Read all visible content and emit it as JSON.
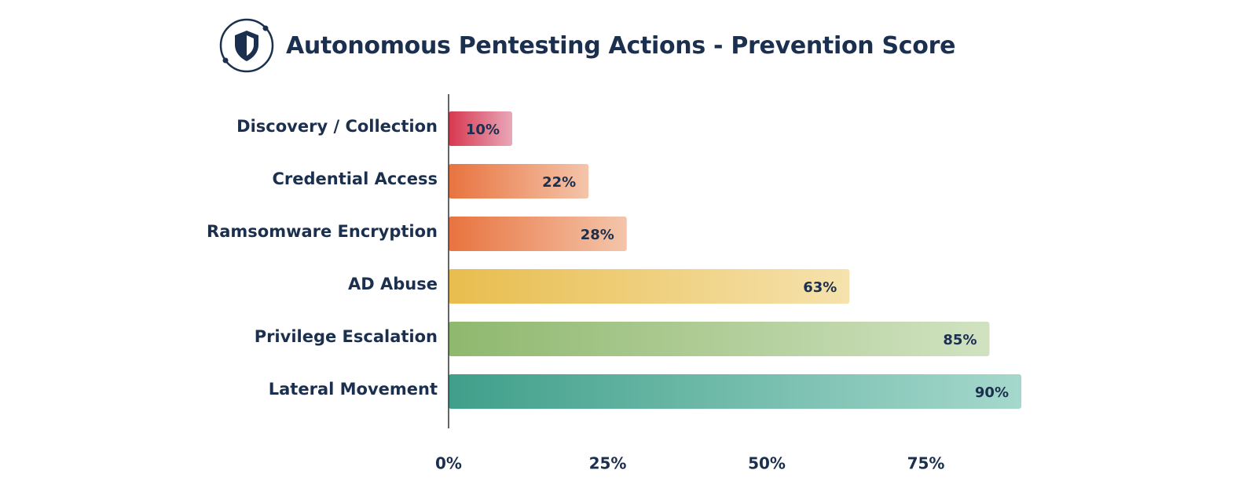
{
  "chart_data": {
    "type": "bar",
    "orientation": "horizontal",
    "title": "Autonomous Pentesting Actions - Prevention Score",
    "xlabel": "",
    "ylabel": "",
    "categories": [
      "Discovery / Collection",
      "Credential Access",
      "Ramsomware Encryption",
      "AD Abuse",
      "Privilege Escalation",
      "Lateral Movement"
    ],
    "values": [
      10,
      22,
      28,
      63,
      85,
      90
    ],
    "value_labels": [
      "10%",
      "22%",
      "28%",
      "63%",
      "85%",
      "90%"
    ],
    "xlim": [
      0,
      100
    ],
    "xticks": [
      0,
      25,
      50,
      75
    ],
    "xtick_labels": [
      "0%",
      "25%",
      "50%",
      "75%"
    ],
    "grid": false,
    "legend": "none",
    "bar_colors": [
      [
        "#d7374f",
        "#e9a7b8"
      ],
      [
        "#e8733f",
        "#f4c5aa"
      ],
      [
        "#e8733f",
        "#f4c5aa"
      ],
      [
        "#e8bd4e",
        "#f5e2ad"
      ],
      [
        "#8fb86e",
        "#d1e2c1"
      ],
      [
        "#3f9f8a",
        "#a5d8cc"
      ]
    ],
    "text_color": "#1b2f4f",
    "axis_color": "#333333"
  },
  "header": {
    "icon": "shield-icon"
  }
}
